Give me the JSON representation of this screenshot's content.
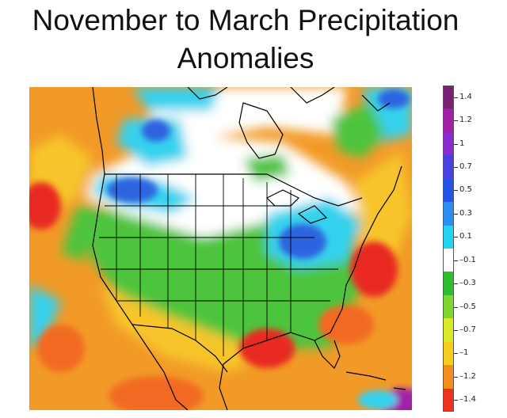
{
  "title": {
    "line1": "November to March Precipitation",
    "line2": "Anomalies"
  },
  "legend": {
    "labels": [
      "1.4",
      "1.2",
      "1",
      "0.7",
      "0.5",
      "0.3",
      "0.1",
      "–0.1",
      "–0.3",
      "–0.5",
      "–0.7",
      "–1",
      "–1.2",
      "–1.4"
    ],
    "colors": [
      "#7b1f73",
      "#a020a8",
      "#8a2bd2",
      "#4a3fe0",
      "#2255e6",
      "#2a8ff0",
      "#23d3f0",
      "#ffffff",
      "#2ebf2e",
      "#7ed630",
      "#d8ea2a",
      "#f6cf1e",
      "#f58c1e",
      "#ee3220"
    ]
  },
  "map": {
    "region": "North America",
    "projection": "lat-lon",
    "colors": {
      "ocean_background": "#f29a28",
      "dry_strong": "#e82a24",
      "dry": "#f26a22",
      "dry_mild": "#f7c52a",
      "near_normal_dry": "#4ec43c",
      "wet_mild": "#35d2ee",
      "wet": "#2f64e0",
      "normal": "#ffffff",
      "boundary": "#000000"
    }
  }
}
